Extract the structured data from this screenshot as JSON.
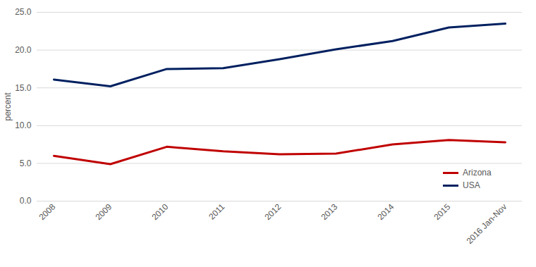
{
  "chart_data": {
    "type": "line",
    "y_label": "percent",
    "categories": [
      "2008",
      "2009",
      "2010",
      "2011",
      "2012",
      "2013",
      "2014",
      "2015",
      "2016 Jan-Nov"
    ],
    "series": [
      {
        "name": "Arizona",
        "color": "#c00000",
        "values": [
          6.0,
          4.9,
          7.2,
          6.6,
          6.2,
          6.3,
          7.5,
          8.1,
          7.8
        ]
      },
      {
        "name": "USA",
        "color": "#002060",
        "values": [
          16.1,
          15.2,
          17.5,
          17.6,
          18.8,
          20.1,
          21.2,
          23.0,
          23.5
        ]
      }
    ],
    "ylim": [
      0,
      25
    ],
    "yticks": [
      {
        "value": 0,
        "label": "0.0"
      },
      {
        "value": 5,
        "label": "5.0"
      },
      {
        "value": 10,
        "label": "10.0"
      },
      {
        "value": 15,
        "label": "15.0"
      },
      {
        "value": 20,
        "label": "20.0"
      },
      {
        "value": 25,
        "label": "25.0"
      }
    ],
    "grid": true,
    "legend": "bottom-right"
  }
}
